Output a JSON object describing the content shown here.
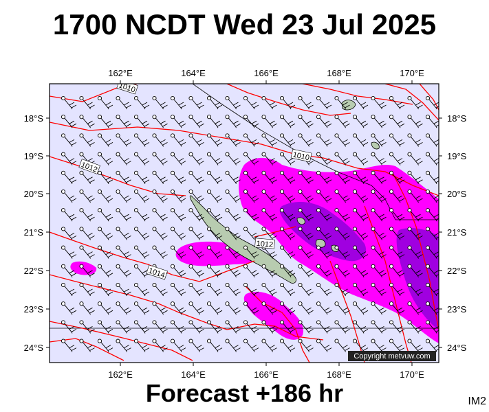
{
  "header": {
    "title": "1700 NCDT Wed 23 Jul 2025"
  },
  "footer": {
    "forecast": "Forecast +186 hr",
    "code": "IM2",
    "copyright": "Copyright metvuw.com"
  },
  "map": {
    "lon_labels": [
      "162°E",
      "164°E",
      "166°E",
      "168°E",
      "170°E"
    ],
    "lat_labels": [
      "18°S",
      "19°S",
      "20°S",
      "21°S",
      "22°S",
      "23°S",
      "24°S"
    ],
    "isobar_labels": [
      "1010",
      "1010",
      "1012",
      "1012",
      "1014"
    ],
    "colors": {
      "background": "#e4e4ff",
      "isobar": "#ff0000",
      "rain_light": "#ff00ff",
      "rain_heavy": "#a000e0",
      "land": "#b8ccb0"
    }
  }
}
